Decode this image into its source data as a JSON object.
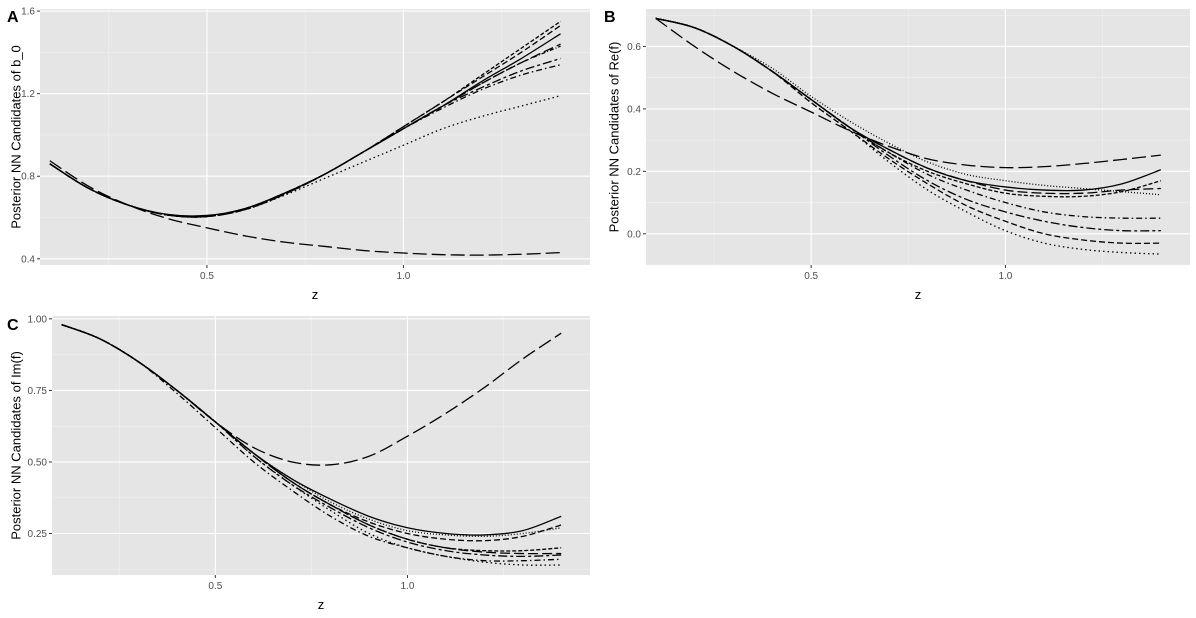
{
  "chart_data": [
    {
      "type": "line",
      "panel_tag": "A",
      "xlabel": "z",
      "ylabel": "Posterior NN Candidates of b_0",
      "xlim": [
        0.075,
        1.475
      ],
      "ylim": [
        0.37,
        1.61
      ],
      "x_ticks": [
        0.5,
        1.0
      ],
      "x_tick_labels": [
        "0.5",
        "1.0"
      ],
      "y_ticks": [
        0.4,
        0.8,
        1.2,
        1.6
      ],
      "y_tick_labels": [
        "0.4",
        "0.8",
        "1.2",
        "1.6"
      ],
      "grid": true,
      "x": [
        0.1,
        0.2,
        0.3,
        0.4,
        0.5,
        0.6,
        0.7,
        0.8,
        0.9,
        1.0,
        1.1,
        1.2,
        1.3,
        1.4
      ],
      "series": [
        {
          "linetype": "solid",
          "values": [
            0.86,
            0.74,
            0.66,
            0.615,
            0.61,
            0.645,
            0.72,
            0.81,
            0.92,
            1.03,
            1.14,
            1.26,
            1.37,
            1.49
          ]
        },
        {
          "linetype": "longdash",
          "values": [
            0.875,
            0.75,
            0.66,
            0.595,
            0.55,
            0.51,
            0.48,
            0.46,
            0.44,
            0.428,
            0.42,
            0.418,
            0.422,
            0.43
          ]
        },
        {
          "linetype": "dashed",
          "values": [
            0.86,
            0.74,
            0.66,
            0.612,
            0.605,
            0.64,
            0.715,
            0.81,
            0.92,
            1.04,
            1.16,
            1.28,
            1.4,
            1.53
          ]
        },
        {
          "linetype": "dotted",
          "values": [
            0.86,
            0.74,
            0.66,
            0.612,
            0.605,
            0.64,
            0.71,
            0.79,
            0.87,
            0.95,
            1.03,
            1.09,
            1.14,
            1.19
          ]
        },
        {
          "linetype": "dotdash",
          "values": [
            0.86,
            0.74,
            0.66,
            0.612,
            0.605,
            0.645,
            0.72,
            0.81,
            0.92,
            1.03,
            1.13,
            1.22,
            1.29,
            1.34
          ]
        },
        {
          "linetype": "twodash",
          "values": [
            0.86,
            0.74,
            0.66,
            0.612,
            0.605,
            0.645,
            0.72,
            0.81,
            0.92,
            1.03,
            1.14,
            1.23,
            1.31,
            1.37
          ]
        },
        {
          "linetype": "longdash2",
          "values": [
            0.86,
            0.74,
            0.66,
            0.612,
            0.605,
            0.645,
            0.72,
            0.81,
            0.92,
            1.03,
            1.14,
            1.25,
            1.35,
            1.44
          ]
        },
        {
          "linetype": "dashed2",
          "values": [
            0.86,
            0.74,
            0.66,
            0.612,
            0.605,
            0.64,
            0.715,
            0.81,
            0.92,
            1.04,
            1.16,
            1.29,
            1.42,
            1.55
          ]
        },
        {
          "linetype": "dotdash2",
          "values": [
            0.86,
            0.74,
            0.66,
            0.612,
            0.605,
            0.645,
            0.72,
            0.81,
            0.92,
            1.03,
            1.14,
            1.25,
            1.35,
            1.43
          ]
        }
      ]
    },
    {
      "type": "line",
      "panel_tag": "B",
      "xlabel": "z",
      "ylabel": "Posterior NN Candidates of Re(f)",
      "xlim": [
        0.075,
        1.475
      ],
      "ylim": [
        -0.1,
        0.72
      ],
      "x_ticks": [
        0.5,
        1.0
      ],
      "x_tick_labels": [
        "0.5",
        "1.0"
      ],
      "y_ticks": [
        0.0,
        0.2,
        0.4,
        0.6
      ],
      "y_tick_labels": [
        "0.0",
        "0.2",
        "0.4",
        "0.6"
      ],
      "grid": true,
      "x": [
        0.1,
        0.2,
        0.3,
        0.4,
        0.5,
        0.6,
        0.7,
        0.8,
        0.9,
        1.0,
        1.1,
        1.2,
        1.3,
        1.4
      ],
      "series": [
        {
          "linetype": "solid",
          "values": [
            0.69,
            0.66,
            0.6,
            0.52,
            0.43,
            0.34,
            0.27,
            0.21,
            0.17,
            0.15,
            0.14,
            0.14,
            0.16,
            0.205
          ]
        },
        {
          "linetype": "longdash",
          "values": [
            0.69,
            0.6,
            0.52,
            0.45,
            0.39,
            0.33,
            0.28,
            0.24,
            0.22,
            0.212,
            0.215,
            0.225,
            0.238,
            0.252
          ]
        },
        {
          "linetype": "dashed",
          "values": [
            0.69,
            0.66,
            0.6,
            0.52,
            0.42,
            0.33,
            0.24,
            0.16,
            0.09,
            0.04,
            0.0,
            -0.02,
            -0.03,
            -0.03
          ]
        },
        {
          "linetype": "dotted",
          "values": [
            0.69,
            0.66,
            0.6,
            0.52,
            0.42,
            0.33,
            0.23,
            0.14,
            0.07,
            0.01,
            -0.03,
            -0.05,
            -0.06,
            -0.065
          ]
        },
        {
          "linetype": "dotdash",
          "values": [
            0.69,
            0.66,
            0.6,
            0.52,
            0.43,
            0.34,
            0.26,
            0.19,
            0.14,
            0.1,
            0.07,
            0.055,
            0.05,
            0.05
          ]
        },
        {
          "linetype": "twodash",
          "values": [
            0.69,
            0.66,
            0.6,
            0.52,
            0.43,
            0.34,
            0.25,
            0.17,
            0.11,
            0.07,
            0.04,
            0.02,
            0.01,
            0.01
          ]
        },
        {
          "linetype": "longdash2",
          "values": [
            0.69,
            0.66,
            0.6,
            0.52,
            0.43,
            0.34,
            0.27,
            0.21,
            0.17,
            0.14,
            0.13,
            0.13,
            0.14,
            0.145
          ]
        },
        {
          "linetype": "dotted2",
          "values": [
            0.69,
            0.66,
            0.6,
            0.53,
            0.44,
            0.36,
            0.29,
            0.23,
            0.19,
            0.17,
            0.155,
            0.145,
            0.135,
            0.125
          ]
        },
        {
          "linetype": "dashed2",
          "values": [
            0.69,
            0.66,
            0.6,
            0.52,
            0.43,
            0.34,
            0.26,
            0.2,
            0.16,
            0.13,
            0.12,
            0.12,
            0.135,
            0.17
          ]
        }
      ]
    },
    {
      "type": "line",
      "panel_tag": "C",
      "xlabel": "z",
      "ylabel": "Posterior NN Candidates of Im(f)",
      "xlim": [
        0.075,
        1.475
      ],
      "ylim": [
        0.105,
        1.01
      ],
      "x_ticks": [
        0.5,
        1.0
      ],
      "x_tick_labels": [
        "0.5",
        "1.0"
      ],
      "y_ticks": [
        0.25,
        0.5,
        0.75,
        1.0
      ],
      "y_tick_labels": [
        "0.25",
        "0.50",
        "0.75",
        "1.00"
      ],
      "grid": true,
      "x": [
        0.1,
        0.2,
        0.3,
        0.4,
        0.5,
        0.6,
        0.7,
        0.8,
        0.9,
        1.0,
        1.1,
        1.2,
        1.3,
        1.4
      ],
      "series": [
        {
          "linetype": "solid",
          "values": [
            0.98,
            0.93,
            0.85,
            0.75,
            0.64,
            0.53,
            0.44,
            0.37,
            0.31,
            0.27,
            0.25,
            0.245,
            0.26,
            0.31
          ]
        },
        {
          "linetype": "longdash",
          "values": [
            0.98,
            0.93,
            0.85,
            0.75,
            0.64,
            0.55,
            0.5,
            0.49,
            0.52,
            0.59,
            0.67,
            0.76,
            0.86,
            0.95
          ]
        },
        {
          "linetype": "dashed",
          "values": [
            0.98,
            0.93,
            0.85,
            0.75,
            0.64,
            0.53,
            0.43,
            0.35,
            0.29,
            0.25,
            0.23,
            0.225,
            0.24,
            0.28
          ]
        },
        {
          "linetype": "dotted",
          "values": [
            0.98,
            0.93,
            0.85,
            0.75,
            0.64,
            0.52,
            0.42,
            0.33,
            0.25,
            0.2,
            0.17,
            0.15,
            0.14,
            0.14
          ]
        },
        {
          "linetype": "dotdash",
          "values": [
            0.98,
            0.93,
            0.85,
            0.74,
            0.62,
            0.5,
            0.4,
            0.31,
            0.24,
            0.2,
            0.17,
            0.155,
            0.155,
            0.16
          ]
        },
        {
          "linetype": "twodash",
          "values": [
            0.98,
            0.93,
            0.85,
            0.75,
            0.64,
            0.52,
            0.42,
            0.34,
            0.27,
            0.22,
            0.19,
            0.175,
            0.17,
            0.175
          ]
        },
        {
          "linetype": "longdash2",
          "values": [
            0.98,
            0.93,
            0.85,
            0.75,
            0.64,
            0.53,
            0.43,
            0.35,
            0.28,
            0.23,
            0.2,
            0.185,
            0.18,
            0.18
          ]
        },
        {
          "linetype": "dotted2",
          "values": [
            0.98,
            0.93,
            0.85,
            0.75,
            0.64,
            0.53,
            0.44,
            0.36,
            0.3,
            0.26,
            0.245,
            0.24,
            0.25,
            0.27
          ]
        },
        {
          "linetype": "dashed2",
          "values": [
            0.98,
            0.93,
            0.85,
            0.75,
            0.64,
            0.53,
            0.43,
            0.35,
            0.28,
            0.23,
            0.2,
            0.19,
            0.19,
            0.2
          ]
        }
      ]
    }
  ]
}
